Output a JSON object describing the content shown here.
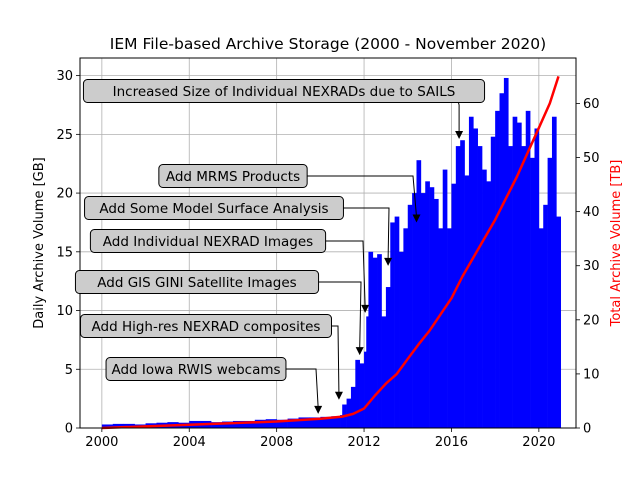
{
  "chart_data": {
    "type": "bar+line",
    "title": "IEM File-based Archive Storage (2000 - November 2020)",
    "xlabel": "",
    "ylabel_left": "Daily Archive Volume [GB]",
    "ylabel_right": "Total Archive Volume [TB]",
    "xlim": [
      1999.0,
      2021.7
    ],
    "ylim_left": [
      0,
      31.5
    ],
    "ylim_right": [
      0,
      68.4
    ],
    "x_ticks": [
      2000,
      2004,
      2008,
      2012,
      2016,
      2020
    ],
    "y_left_ticks": [
      0,
      5,
      10,
      15,
      20,
      25,
      30
    ],
    "y_right_ticks": [
      0,
      10,
      20,
      30,
      40,
      50,
      60
    ],
    "grid": true,
    "colors": {
      "bars": "#0000ff",
      "line": "#ff0000",
      "grid": "#b0b0b0",
      "box_fill": "#cccccc"
    },
    "series": [
      {
        "name": "",
        "type": "bar",
        "axis": "left",
        "x": [
          2000.0,
          2000.5,
          2001.0,
          2001.5,
          2002.0,
          2002.5,
          2003.0,
          2003.5,
          2004.0,
          2004.5,
          2005.0,
          2005.5,
          2006.0,
          2006.5,
          2007.0,
          2007.5,
          2008.0,
          2008.5,
          2009.0,
          2009.5,
          2010.0,
          2010.5,
          2010.9,
          2011.0,
          2011.2,
          2011.4,
          2011.6,
          2011.8,
          2012.0,
          2012.1,
          2012.2,
          2012.4,
          2012.6,
          2012.8,
          2013.0,
          2013.2,
          2013.4,
          2013.6,
          2013.8,
          2014.0,
          2014.2,
          2014.4,
          2014.6,
          2014.8,
          2015.0,
          2015.2,
          2015.4,
          2015.6,
          2015.8,
          2016.0,
          2016.2,
          2016.4,
          2016.6,
          2016.8,
          2017.0,
          2017.2,
          2017.4,
          2017.6,
          2017.8,
          2018.0,
          2018.2,
          2018.4,
          2018.6,
          2018.8,
          2019.0,
          2019.2,
          2019.4,
          2019.6,
          2019.8,
          2020.0,
          2020.2,
          2020.4,
          2020.6,
          2020.8
        ],
        "values": [
          0.3,
          0.35,
          0.35,
          0.3,
          0.4,
          0.45,
          0.5,
          0.45,
          0.6,
          0.6,
          0.5,
          0.55,
          0.6,
          0.6,
          0.7,
          0.75,
          0.7,
          0.8,
          0.9,
          0.9,
          0.95,
          1.0,
          1.1,
          2.0,
          2.5,
          3.5,
          5.8,
          5.5,
          6.5,
          9.5,
          15.0,
          14.5,
          14.8,
          9.5,
          12.0,
          17.5,
          18.0,
          15.0,
          17.0,
          19.0,
          20.0,
          22.8,
          20.0,
          21.0,
          20.5,
          19.5,
          17.0,
          22.0,
          17.0,
          20.8,
          24.0,
          24.5,
          21.5,
          26.5,
          25.5,
          24.0,
          22.0,
          21.0,
          24.8,
          27.0,
          28.5,
          29.8,
          24.0,
          26.5,
          26.0,
          24.0,
          27.0,
          23.0,
          25.5,
          17.0,
          19.0,
          23.0,
          26.5,
          18.0
        ]
      },
      {
        "name": "",
        "type": "line",
        "axis": "right",
        "x": [
          2000.0,
          2002.0,
          2004.0,
          2006.0,
          2008.0,
          2010.0,
          2011.0,
          2011.5,
          2012.0,
          2012.5,
          2013.0,
          2013.5,
          2014.0,
          2014.5,
          2015.0,
          2015.5,
          2016.0,
          2016.5,
          2017.0,
          2017.5,
          2018.0,
          2018.5,
          2019.0,
          2019.5,
          2020.0,
          2020.5,
          2020.9
        ],
        "values": [
          0.0,
          0.3,
          0.6,
          0.9,
          1.2,
          1.7,
          2.1,
          2.6,
          3.6,
          6.0,
          8.2,
          10.0,
          12.8,
          15.5,
          18.0,
          21.0,
          24.0,
          28.0,
          31.5,
          35.0,
          38.5,
          42.5,
          46.5,
          51.0,
          55.5,
          60.0,
          65.0
        ]
      }
    ],
    "annotations": [
      {
        "text": "Add Iowa RWIS webcams",
        "x": 2009.9,
        "y": 1.2
      },
      {
        "text": "Add High-res NEXRAD composites",
        "x": 2010.85,
        "y": 2.4
      },
      {
        "text": "Add GIS GINI Satellite Images",
        "x": 2011.8,
        "y": 6.2
      },
      {
        "text": "Add Individual NEXRAD Images",
        "x": 2012.05,
        "y": 9.8
      },
      {
        "text": "Add Some Model Surface Analysis",
        "x": 2013.1,
        "y": 13.8
      },
      {
        "text": "Add MRMS Products",
        "x": 2014.4,
        "y": 17.5
      },
      {
        "text": "Increased Size of Individual NEXRADs due to SAILS",
        "x": 2016.35,
        "y": 24.6
      }
    ]
  }
}
